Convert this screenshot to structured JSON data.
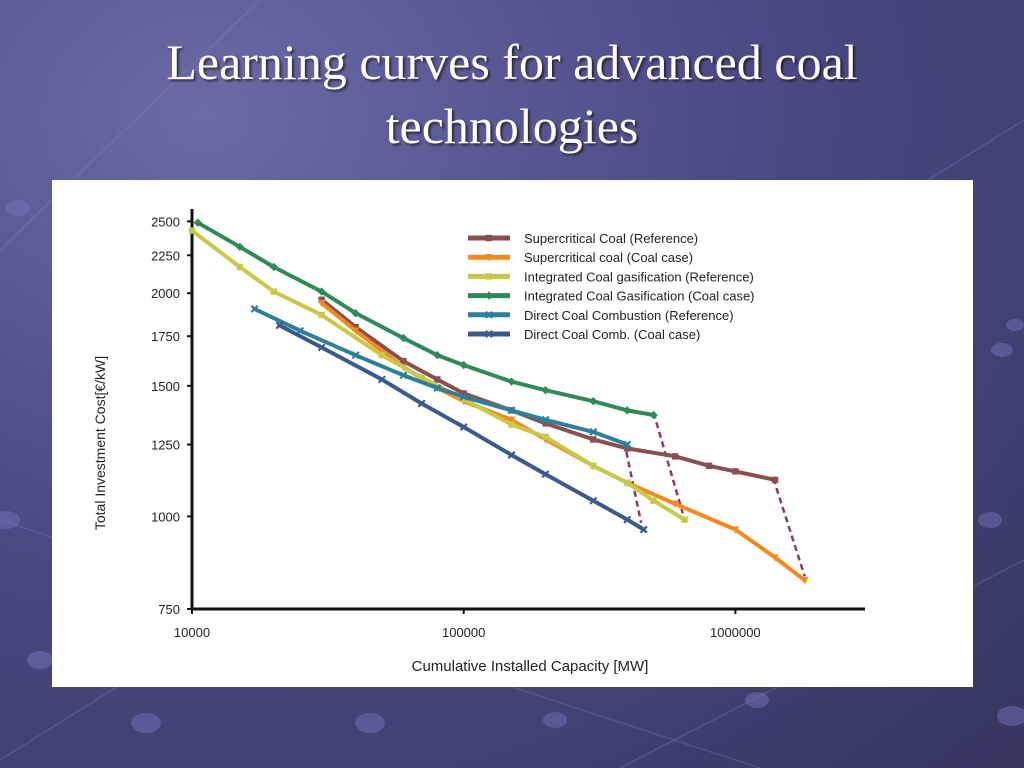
{
  "slide": {
    "title_line1": "Learning curves for advanced coal",
    "title_line2": "technologies"
  },
  "chart_data": {
    "type": "line",
    "title": "",
    "xlabel": "Cumulative Installed Capacity [MW]",
    "ylabel": "Total Investment Cost[€/kW]",
    "x_scale": "log",
    "y_scale": "log",
    "xlim": [
      10000,
      3000000
    ],
    "ylim": [
      750,
      2550
    ],
    "x_ticks": [
      10000,
      100000,
      1000000
    ],
    "x_tick_labels": [
      "10000",
      "100000",
      "1000000"
    ],
    "y_ticks": [
      750,
      1000,
      1250,
      1500,
      1750,
      2000,
      2250,
      2500
    ],
    "y_tick_labels": [
      "750",
      "1000",
      "1250",
      "1500",
      "1750",
      "2000",
      "2250",
      "2500"
    ],
    "grid": false,
    "legend_position": "top-right",
    "series": [
      {
        "name": "Supercritical Coal (Reference)",
        "color": "#8b4f4f",
        "marker": "square",
        "points": [
          [
            30000,
            1960
          ],
          [
            40000,
            1800
          ],
          [
            60000,
            1620
          ],
          [
            80000,
            1530
          ],
          [
            100000,
            1465
          ],
          [
            150000,
            1390
          ],
          [
            200000,
            1335
          ],
          [
            300000,
            1270
          ],
          [
            400000,
            1235
          ],
          [
            600000,
            1205
          ],
          [
            800000,
            1170
          ],
          [
            1000000,
            1150
          ],
          [
            1400000,
            1120
          ]
        ]
      },
      {
        "name": "Supercritical coal (Coal case)",
        "color": "#f48a1c",
        "marker": "triangle",
        "points": [
          [
            30000,
            1940
          ],
          [
            40000,
            1780
          ],
          [
            60000,
            1590
          ],
          [
            80000,
            1490
          ],
          [
            100000,
            1430
          ],
          [
            150000,
            1350
          ],
          [
            200000,
            1270
          ],
          [
            300000,
            1170
          ],
          [
            400000,
            1110
          ],
          [
            600000,
            1040
          ],
          [
            1000000,
            960
          ],
          [
            1400000,
            880
          ],
          [
            1800000,
            820
          ]
        ]
      },
      {
        "name": "Integrated Coal gasification (Reference)",
        "color": "#c8c84a",
        "marker": "square",
        "points": [
          [
            10000,
            2430
          ],
          [
            15000,
            2170
          ],
          [
            20000,
            2010
          ],
          [
            30000,
            1870
          ],
          [
            50000,
            1650
          ],
          [
            70000,
            1540
          ],
          [
            100000,
            1440
          ],
          [
            150000,
            1330
          ],
          [
            200000,
            1280
          ],
          [
            300000,
            1170
          ],
          [
            400000,
            1110
          ],
          [
            500000,
            1050
          ],
          [
            650000,
            990
          ]
        ]
      },
      {
        "name": "Integrated Coal Gasification (Coal case)",
        "color": "#2f8a56",
        "marker": "diamond",
        "points": [
          [
            10500,
            2490
          ],
          [
            15000,
            2310
          ],
          [
            20000,
            2170
          ],
          [
            30000,
            2010
          ],
          [
            40000,
            1880
          ],
          [
            60000,
            1740
          ],
          [
            80000,
            1650
          ],
          [
            100000,
            1600
          ],
          [
            150000,
            1520
          ],
          [
            200000,
            1480
          ],
          [
            300000,
            1430
          ],
          [
            400000,
            1390
          ],
          [
            500000,
            1370
          ]
        ]
      },
      {
        "name": "Direct Coal Combustion (Reference)",
        "color": "#2e7f9c",
        "marker": "x",
        "points": [
          [
            17000,
            1905
          ],
          [
            25000,
            1780
          ],
          [
            40000,
            1650
          ],
          [
            60000,
            1550
          ],
          [
            80000,
            1490
          ],
          [
            100000,
            1450
          ],
          [
            150000,
            1390
          ],
          [
            200000,
            1350
          ],
          [
            300000,
            1300
          ],
          [
            400000,
            1250
          ]
        ]
      },
      {
        "name": "Direct Coal Comb. (Coal case)",
        "color": "#3b5a8c",
        "marker": "x",
        "points": [
          [
            21000,
            1810
          ],
          [
            30000,
            1690
          ],
          [
            50000,
            1530
          ],
          [
            70000,
            1420
          ],
          [
            100000,
            1320
          ],
          [
            150000,
            1210
          ],
          [
            200000,
            1140
          ],
          [
            300000,
            1050
          ],
          [
            400000,
            990
          ],
          [
            460000,
            960
          ]
        ]
      }
    ],
    "connectors": {
      "color": "#8a3a6e",
      "style": "dashed",
      "segments": [
        [
          [
            390000,
            1260
          ],
          [
            450000,
            980
          ]
        ],
        [
          [
            500000,
            1380
          ],
          [
            640000,
            1010
          ]
        ],
        [
          [
            1380000,
            1125
          ],
          [
            1800000,
            830
          ]
        ]
      ]
    }
  }
}
